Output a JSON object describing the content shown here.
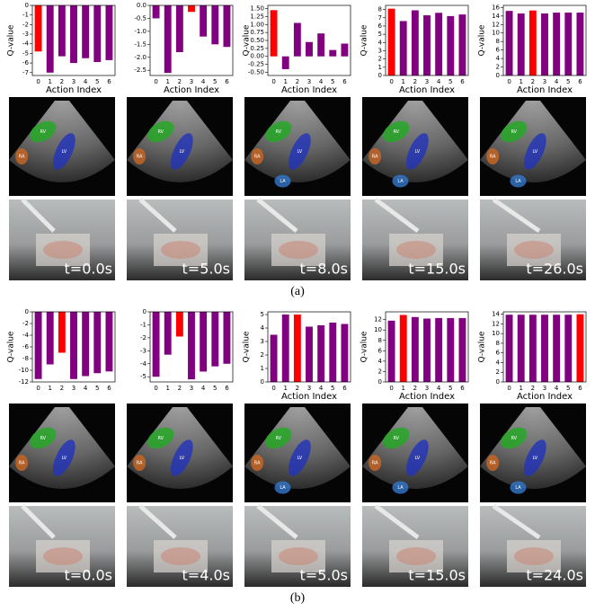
{
  "chart_data": [
    {
      "type": "bar",
      "ylabel": "Q-value",
      "xlabel": "Action Index",
      "categories": [
        "0",
        "1",
        "2",
        "3",
        "4",
        "5",
        "6"
      ],
      "values": [
        -4.8,
        -7.0,
        -5.3,
        -6.0,
        -5.5,
        -5.9,
        -5.7
      ],
      "colors": [
        "#ff0000",
        "#800080",
        "#800080",
        "#800080",
        "#800080",
        "#800080",
        "#800080"
      ],
      "ylim": [
        -7.3,
        0
      ],
      "yticks": [
        0,
        -1,
        -2,
        -3,
        -4,
        -5,
        -6,
        -7
      ]
    },
    {
      "type": "bar",
      "xlabel": "Action Index",
      "categories": [
        "0",
        "1",
        "2",
        "3",
        "4",
        "5",
        "6"
      ],
      "values": [
        -0.5,
        -2.6,
        -1.8,
        -0.25,
        -1.2,
        -1.5,
        -1.6
      ],
      "colors": [
        "#800080",
        "#800080",
        "#800080",
        "#ff0000",
        "#800080",
        "#800080",
        "#800080"
      ],
      "ylim": [
        -2.7,
        0
      ],
      "yticks": [
        {
          "value": 0,
          "label": "0.0"
        },
        -0.5,
        {
          "value": -1,
          "label": "-1.0"
        },
        -1.5,
        {
          "value": -2,
          "label": "-2.0"
        },
        -2.5
      ]
    },
    {
      "type": "bar",
      "ylabel": "Q-value",
      "xlabel": "Action Index",
      "categories": [
        "0",
        "1",
        "2",
        "3",
        "4",
        "5",
        "6"
      ],
      "values": [
        1.45,
        -0.4,
        1.05,
        0.45,
        0.72,
        0.2,
        0.4
      ],
      "colors": [
        "#ff0000",
        "#800080",
        "#800080",
        "#800080",
        "#800080",
        "#800080",
        "#800080"
      ],
      "ylim": [
        -0.6,
        1.6
      ],
      "yticks": [
        {
          "value": -0.5,
          "label": "-0.50"
        },
        {
          "value": -0.25,
          "label": "-0.25"
        },
        {
          "value": 0,
          "label": "0.00"
        },
        {
          "value": 0.25,
          "label": "0.25"
        },
        {
          "value": 0.5,
          "label": "0.50"
        },
        {
          "value": 0.75,
          "label": "0.75"
        },
        {
          "value": 1,
          "label": "1.00"
        },
        {
          "value": 1.25,
          "label": "1.25"
        },
        {
          "value": 1.5,
          "label": "1.50"
        }
      ]
    },
    {
      "type": "bar",
      "ylabel": "Q-value",
      "xlabel": "Action Index",
      "categories": [
        "0",
        "1",
        "2",
        "3",
        "4",
        "5",
        "6"
      ],
      "values": [
        8.1,
        6.6,
        7.9,
        7.3,
        7.6,
        7.2,
        7.4
      ],
      "colors": [
        "#ff0000",
        "#800080",
        "#800080",
        "#800080",
        "#800080",
        "#800080",
        "#800080"
      ],
      "ylim": [
        0,
        8.5
      ],
      "yticks": [
        0,
        1,
        2,
        3,
        4,
        5,
        6,
        7,
        8
      ]
    },
    {
      "type": "bar",
      "ylabel": "Q-value",
      "xlabel": "Action Index",
      "categories": [
        "0",
        "1",
        "2",
        "3",
        "4",
        "5",
        "6"
      ],
      "values": [
        15.2,
        14.6,
        15.3,
        14.6,
        14.8,
        14.8,
        14.8
      ],
      "colors": [
        "#800080",
        "#800080",
        "#ff0000",
        "#800080",
        "#800080",
        "#800080",
        "#800080"
      ],
      "ylim": [
        0,
        16.5
      ],
      "yticks": [
        0,
        2,
        4,
        6,
        8,
        10,
        12,
        14,
        16
      ]
    },
    {
      "type": "bar",
      "ylabel": "Q-value",
      "categories": [
        "0",
        "1",
        "2",
        "3",
        "4",
        "5",
        "6"
      ],
      "values": [
        -11.5,
        -9,
        -7,
        -11.5,
        -11,
        -10.5,
        -10.2
      ],
      "colors": [
        "#800080",
        "#800080",
        "#ff0000",
        "#800080",
        "#800080",
        "#800080",
        "#800080"
      ],
      "ylim": [
        -12,
        0
      ],
      "yticks": [
        0,
        -2,
        -4,
        -6,
        -8,
        -10,
        -12
      ]
    },
    {
      "type": "bar",
      "categories": [
        "0",
        "1",
        "2",
        "3",
        "4",
        "5",
        "6"
      ],
      "values": [
        -5.0,
        -3.3,
        -1.9,
        -5.2,
        -4.6,
        -4.2,
        -4.0
      ],
      "colors": [
        "#800080",
        "#800080",
        "#ff0000",
        "#800080",
        "#800080",
        "#800080",
        "#800080"
      ],
      "ylim": [
        -5.4,
        0
      ],
      "yticks": [
        0,
        -1,
        -2,
        -3,
        -4,
        -5
      ]
    },
    {
      "type": "bar",
      "ylabel": "Q-value",
      "xlabel": "Action Index",
      "categories": [
        "0",
        "1",
        "2",
        "3",
        "4",
        "5",
        "6"
      ],
      "values": [
        3.5,
        5.0,
        5.0,
        4.1,
        4.2,
        4.4,
        4.3
      ],
      "colors": [
        "#800080",
        "#800080",
        "#ff0000",
        "#800080",
        "#800080",
        "#800080",
        "#800080"
      ],
      "ylim": [
        0,
        5.2
      ],
      "yticks": [
        0,
        1,
        2,
        3,
        4,
        5
      ]
    },
    {
      "type": "bar",
      "ylabel": "Q-value",
      "xlabel": "Action Index",
      "categories": [
        "0",
        "1",
        "2",
        "3",
        "4",
        "5",
        "6"
      ],
      "values": [
        11.8,
        12.9,
        12.5,
        12.2,
        12.3,
        12.3,
        12.3
      ],
      "colors": [
        "#800080",
        "#ff0000",
        "#800080",
        "#800080",
        "#800080",
        "#800080",
        "#800080"
      ],
      "ylim": [
        0,
        13.5
      ],
      "yticks": [
        0,
        2,
        4,
        6,
        8,
        10,
        12
      ]
    },
    {
      "type": "bar",
      "ylabel": "Q-value",
      "xlabel": "Action Index",
      "categories": [
        "0",
        "1",
        "2",
        "3",
        "4",
        "5",
        "6"
      ],
      "values": [
        13.9,
        13.9,
        13.9,
        13.9,
        13.9,
        13.9,
        14.0
      ],
      "colors": [
        "#800080",
        "#800080",
        "#800080",
        "#800080",
        "#800080",
        "#800080",
        "#ff0000"
      ],
      "ylim": [
        0,
        14.5
      ],
      "yticks": [
        0,
        2,
        4,
        6,
        8,
        10,
        12,
        14
      ]
    }
  ],
  "panels": [
    {
      "caption": "(a)",
      "frames": [
        {
          "time": "t=0.0s",
          "regions": [
            {
              "label": "RV",
              "color": "#22aa22"
            },
            {
              "label": "LV",
              "color": "#2233bb"
            },
            {
              "label": "RA",
              "color": "#cc6622"
            }
          ]
        },
        {
          "time": "t=5.0s",
          "regions": [
            {
              "label": "RV",
              "color": "#22aa22"
            },
            {
              "label": "LV",
              "color": "#2233bb"
            },
            {
              "label": "RA",
              "color": "#cc6622"
            }
          ]
        },
        {
          "time": "t=8.0s",
          "regions": [
            {
              "label": "RV",
              "color": "#22aa22"
            },
            {
              "label": "LV",
              "color": "#2233bb"
            },
            {
              "label": "RA",
              "color": "#cc6622"
            },
            {
              "label": "LA",
              "color": "#3377cc"
            }
          ]
        },
        {
          "time": "t=15.0s",
          "regions": [
            {
              "label": "RV",
              "color": "#22aa22"
            },
            {
              "label": "LV",
              "color": "#2233bb"
            },
            {
              "label": "RA",
              "color": "#cc6622"
            },
            {
              "label": "LA",
              "color": "#3377cc"
            }
          ]
        },
        {
          "time": "t=26.0s",
          "regions": [
            {
              "label": "RV",
              "color": "#22aa22"
            },
            {
              "label": "LV",
              "color": "#2233bb"
            },
            {
              "label": "RA",
              "color": "#cc6622"
            },
            {
              "label": "LA",
              "color": "#3377cc"
            }
          ]
        }
      ]
    },
    {
      "caption": "(b)",
      "frames": [
        {
          "time": "t=0.0s",
          "regions": [
            {
              "label": "RV",
              "color": "#22aa22"
            },
            {
              "label": "LV",
              "color": "#2233bb"
            },
            {
              "label": "RA",
              "color": "#cc6622"
            }
          ]
        },
        {
          "time": "t=4.0s",
          "regions": [
            {
              "label": "RV",
              "color": "#22aa22"
            },
            {
              "label": "LV",
              "color": "#2233bb"
            },
            {
              "label": "RA",
              "color": "#cc6622"
            }
          ]
        },
        {
          "time": "t=5.0s",
          "regions": [
            {
              "label": "RV",
              "color": "#22aa22"
            },
            {
              "label": "LV",
              "color": "#2233bb"
            },
            {
              "label": "RA",
              "color": "#cc6622"
            },
            {
              "label": "LA",
              "color": "#3377cc"
            }
          ]
        },
        {
          "time": "t=15.0s",
          "regions": [
            {
              "label": "RV",
              "color": "#22aa22"
            },
            {
              "label": "LV",
              "color": "#2233bb"
            },
            {
              "label": "RA",
              "color": "#cc6622"
            },
            {
              "label": "LA",
              "color": "#3377cc"
            }
          ]
        },
        {
          "time": "t=24.0s",
          "regions": [
            {
              "label": "RV",
              "color": "#22aa22"
            },
            {
              "label": "LV",
              "color": "#2233bb"
            },
            {
              "label": "RA",
              "color": "#cc6622"
            },
            {
              "label": "LA",
              "color": "#3377cc"
            }
          ]
        }
      ]
    }
  ]
}
